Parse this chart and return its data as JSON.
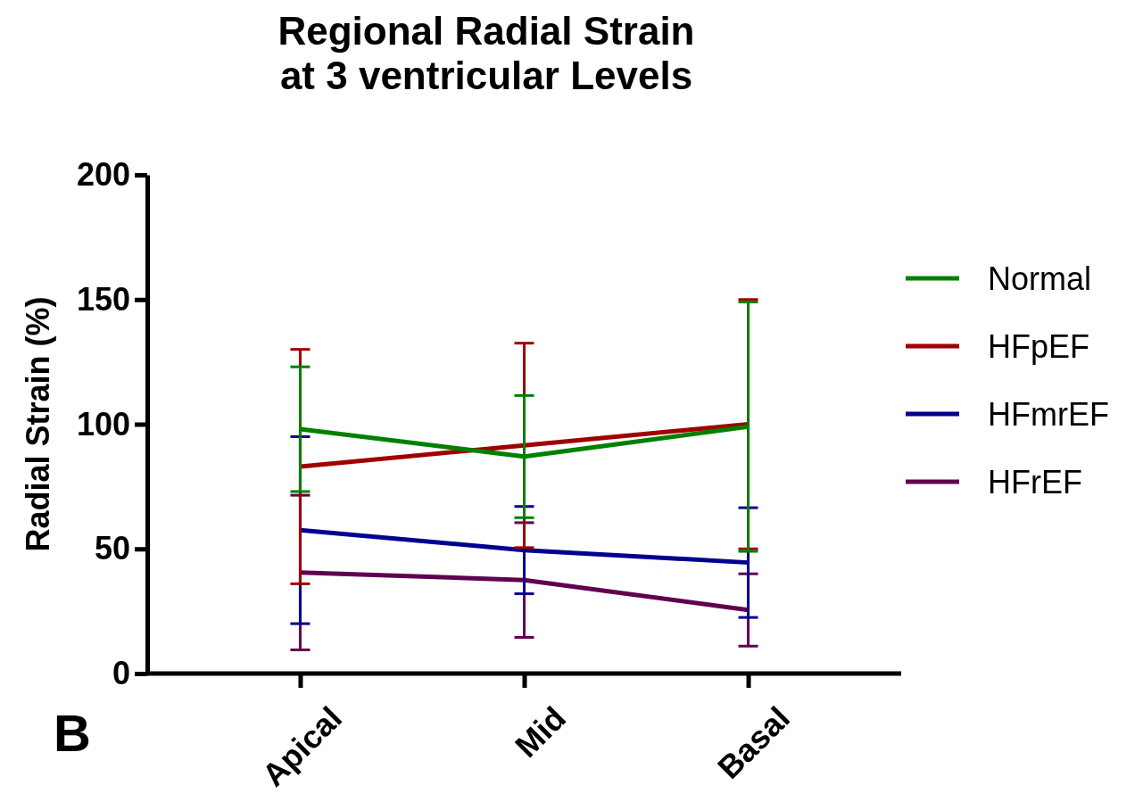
{
  "chart_data": {
    "type": "line",
    "title": "Regional Radial Strain\nat 3 ventricular Levels",
    "ylabel": "Radial Strain (%)",
    "categories": [
      "Apical",
      "Mid",
      "Basal"
    ],
    "series": [
      {
        "name": "Normal",
        "color": "#008000",
        "values": [
          98,
          87,
          99
        ],
        "errors": [
          25,
          24.5,
          50
        ]
      },
      {
        "name": "HFpEF",
        "color": "#a00000",
        "values": [
          83,
          91.5,
          100
        ],
        "errors": [
          47,
          41,
          50
        ]
      },
      {
        "name": "HFmrEF",
        "color": "#000090",
        "values": [
          57.5,
          49.5,
          44.5
        ],
        "errors": [
          37.5,
          17.5,
          22
        ]
      },
      {
        "name": "HFrEF",
        "color": "#600050",
        "values": [
          40.5,
          37.5,
          25.5
        ],
        "errors": [
          31,
          23,
          14.5
        ]
      }
    ],
    "ylim": [
      0,
      200
    ],
    "yticks": [
      0,
      50,
      100,
      150,
      200
    ],
    "grid": false,
    "legend": "right",
    "marker": "none",
    "line_style": "solid",
    "annotations": [
      "B"
    ]
  }
}
